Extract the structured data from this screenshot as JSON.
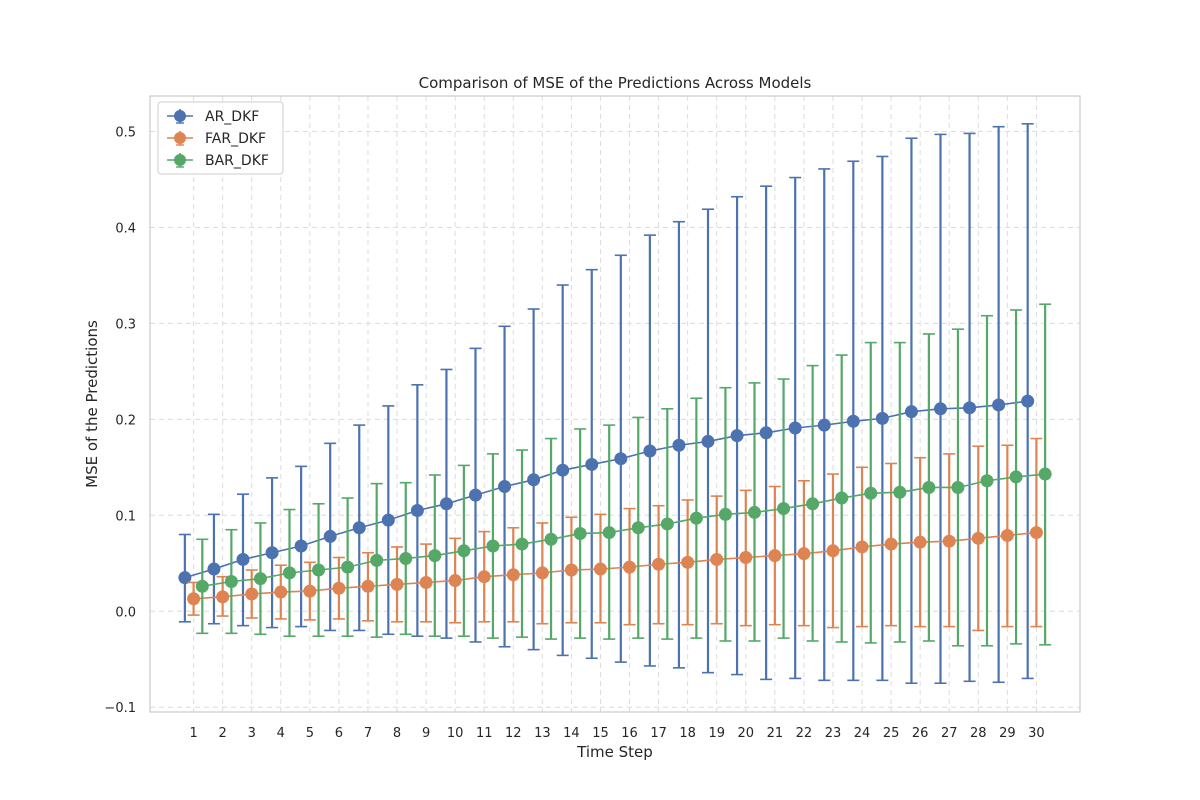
{
  "chart_data": {
    "type": "line",
    "title": "Comparison of MSE of the Predictions Across Models",
    "xlabel": "Time Step",
    "ylabel": "MSE of the Predictions",
    "x": [
      1,
      2,
      3,
      4,
      5,
      6,
      7,
      8,
      9,
      10,
      11,
      12,
      13,
      14,
      15,
      16,
      17,
      18,
      19,
      20,
      21,
      22,
      23,
      24,
      25,
      26,
      27,
      28,
      29,
      30
    ],
    "xlim": [
      -0.5,
      31.5
    ],
    "ylim": [
      -0.105,
      0.537
    ],
    "yticks": [
      -0.1,
      0.0,
      0.1,
      0.2,
      0.3,
      0.4,
      0.5
    ],
    "ytick_labels": [
      "−0.1",
      "0.0",
      "0.1",
      "0.2",
      "0.3",
      "0.4",
      "0.5"
    ],
    "grid": true,
    "legend_position": "top-left",
    "series": [
      {
        "name": "AR_DKF",
        "color": "#4c72b0",
        "x_offset": -0.3,
        "values": [
          0.035,
          0.044,
          0.054,
          0.061,
          0.068,
          0.078,
          0.087,
          0.095,
          0.105,
          0.112,
          0.121,
          0.13,
          0.137,
          0.147,
          0.153,
          0.159,
          0.167,
          0.173,
          0.177,
          0.183,
          0.186,
          0.191,
          0.194,
          0.198,
          0.201,
          0.208,
          0.211,
          0.212,
          0.215,
          0.219
        ],
        "err_low": [
          -0.011,
          -0.013,
          -0.015,
          -0.017,
          -0.016,
          -0.02,
          -0.02,
          -0.024,
          -0.026,
          -0.028,
          -0.032,
          -0.037,
          -0.04,
          -0.046,
          -0.049,
          -0.053,
          -0.057,
          -0.059,
          -0.064,
          -0.066,
          -0.071,
          -0.07,
          -0.072,
          -0.072,
          -0.072,
          -0.075,
          -0.075,
          -0.073,
          -0.074,
          -0.07
        ],
        "err_high": [
          0.08,
          0.101,
          0.122,
          0.139,
          0.151,
          0.175,
          0.194,
          0.214,
          0.236,
          0.252,
          0.274,
          0.297,
          0.315,
          0.34,
          0.356,
          0.371,
          0.392,
          0.406,
          0.419,
          0.432,
          0.443,
          0.452,
          0.461,
          0.469,
          0.474,
          0.493,
          0.497,
          0.498,
          0.505,
          0.508
        ]
      },
      {
        "name": "FAR_DKF",
        "color": "#dd8452",
        "x_offset": 0.0,
        "values": [
          0.013,
          0.015,
          0.018,
          0.02,
          0.021,
          0.024,
          0.026,
          0.028,
          0.03,
          0.032,
          0.036,
          0.038,
          0.04,
          0.043,
          0.044,
          0.046,
          0.049,
          0.051,
          0.054,
          0.056,
          0.058,
          0.06,
          0.063,
          0.067,
          0.07,
          0.072,
          0.073,
          0.076,
          0.079,
          0.082
        ],
        "err_low": [
          -0.004,
          -0.005,
          -0.007,
          -0.008,
          -0.009,
          -0.008,
          -0.01,
          -0.011,
          -0.011,
          -0.012,
          -0.011,
          -0.011,
          -0.013,
          -0.012,
          -0.012,
          -0.014,
          -0.013,
          -0.014,
          -0.013,
          -0.015,
          -0.014,
          -0.015,
          -0.017,
          -0.016,
          -0.015,
          -0.016,
          -0.016,
          -0.02,
          -0.016,
          -0.016
        ],
        "err_high": [
          0.03,
          0.036,
          0.043,
          0.048,
          0.051,
          0.056,
          0.061,
          0.067,
          0.07,
          0.076,
          0.083,
          0.087,
          0.092,
          0.098,
          0.101,
          0.107,
          0.11,
          0.116,
          0.12,
          0.126,
          0.13,
          0.136,
          0.143,
          0.15,
          0.154,
          0.16,
          0.164,
          0.172,
          0.173,
          0.18
        ]
      },
      {
        "name": "BAR_DKF",
        "color": "#55a868",
        "x_offset": 0.3,
        "values": [
          0.026,
          0.031,
          0.034,
          0.04,
          0.043,
          0.046,
          0.053,
          0.055,
          0.058,
          0.063,
          0.068,
          0.07,
          0.075,
          0.081,
          0.082,
          0.087,
          0.091,
          0.097,
          0.101,
          0.103,
          0.107,
          0.112,
          0.118,
          0.123,
          0.124,
          0.129,
          0.129,
          0.136,
          0.14,
          0.143
        ],
        "err_low": [
          -0.023,
          -0.023,
          -0.024,
          -0.026,
          -0.026,
          -0.026,
          -0.027,
          -0.024,
          -0.026,
          -0.026,
          -0.028,
          -0.027,
          -0.029,
          -0.028,
          -0.029,
          -0.028,
          -0.029,
          -0.028,
          -0.031,
          -0.031,
          -0.028,
          -0.031,
          -0.032,
          -0.033,
          -0.032,
          -0.031,
          -0.036,
          -0.036,
          -0.034,
          -0.035
        ],
        "err_high": [
          0.075,
          0.085,
          0.092,
          0.106,
          0.112,
          0.118,
          0.133,
          0.134,
          0.142,
          0.152,
          0.164,
          0.168,
          0.18,
          0.19,
          0.194,
          0.202,
          0.211,
          0.222,
          0.233,
          0.238,
          0.242,
          0.256,
          0.267,
          0.28,
          0.28,
          0.289,
          0.294,
          0.308,
          0.314,
          0.32
        ]
      }
    ]
  }
}
